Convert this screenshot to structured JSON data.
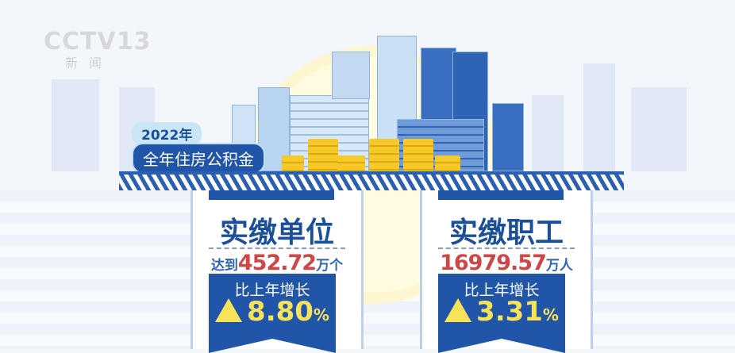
{
  "logo": {
    "text": "CCTV13",
    "sub": "新闻"
  },
  "header": {
    "year": "2022年",
    "topic": "全年住房公积金"
  },
  "cards": [
    {
      "title": "实缴单位",
      "prefix": "达到",
      "value": "452.72",
      "unit": "万个",
      "growth_label": "比上年增长",
      "growth": "8.80",
      "percent": "%"
    },
    {
      "title": "实缴职工",
      "prefix": "",
      "value": "16979.57",
      "unit": "万人",
      "growth_label": "比上年增长",
      "growth": "3.31",
      "percent": "%"
    }
  ],
  "colors": {
    "primary": "#2055a8",
    "value": "#cc4747",
    "growth": "#f7e35a"
  }
}
